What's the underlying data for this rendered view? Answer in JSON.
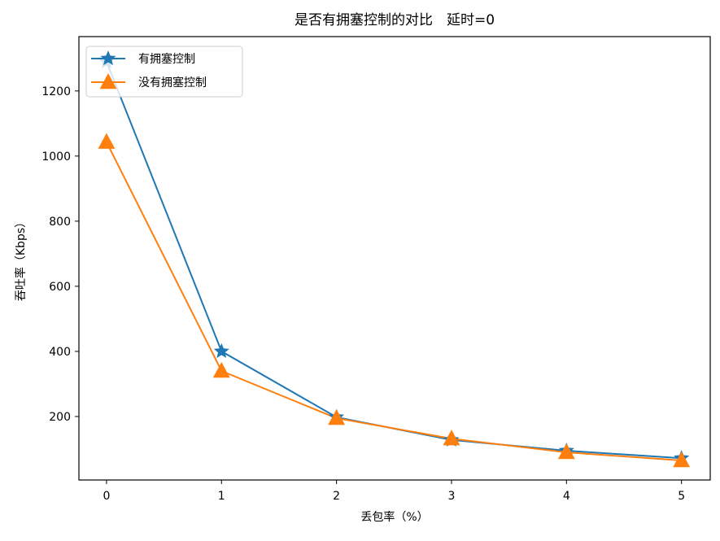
{
  "chart_data": {
    "type": "line",
    "title": "是否有拥塞控制的对比　延时=0",
    "xlabel": "丢包率（%）",
    "ylabel": "吞吐率（Kbps）",
    "x": [
      0,
      1,
      2,
      3,
      4,
      5
    ],
    "xticks": [
      "0",
      "1",
      "2",
      "3",
      "4",
      "5"
    ],
    "yticks": [
      "200",
      "400",
      "600",
      "800",
      "1000",
      "1200"
    ],
    "xlim": [
      -0.24,
      5.25
    ],
    "ylim": [
      5,
      1367
    ],
    "grid": false,
    "legend_position": "upper left",
    "series": [
      {
        "name": "有拥塞控制",
        "color": "#1f77b4",
        "marker": "star",
        "values": [
          1290,
          400,
          198,
          128,
          95,
          72
        ]
      },
      {
        "name": "没有拥塞控制",
        "color": "#ff7f0e",
        "marker": "triangle",
        "values": [
          1043,
          340,
          195,
          132,
          90,
          65
        ]
      }
    ]
  }
}
